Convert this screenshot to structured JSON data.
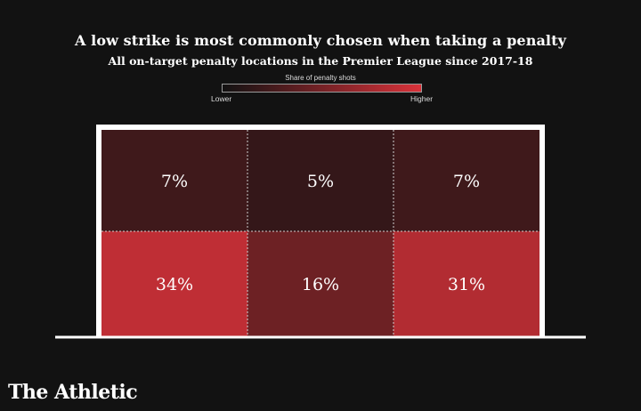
{
  "chart_data": {
    "type": "heatmap",
    "title": "A low strike is most commonly chosen when taking a penalty",
    "subtitle": "All on-target penalty locations in the Premier League since 2017-18",
    "legend": {
      "title": "Share of penalty shots",
      "low_label": "Lower",
      "high_label": "Higher",
      "low_color": "#121212",
      "high_color": "#d9323a"
    },
    "rows": [
      "top",
      "bottom"
    ],
    "columns": [
      "left",
      "center",
      "right"
    ],
    "cells": [
      {
        "row": 0,
        "col": 0,
        "value": 7,
        "label": "7%"
      },
      {
        "row": 0,
        "col": 1,
        "value": 5,
        "label": "5%"
      },
      {
        "row": 0,
        "col": 2,
        "value": 7,
        "label": "7%"
      },
      {
        "row": 1,
        "col": 0,
        "value": 34,
        "label": "34%"
      },
      {
        "row": 1,
        "col": 1,
        "value": 16,
        "label": "16%"
      },
      {
        "row": 1,
        "col": 2,
        "value": 31,
        "label": "31%"
      }
    ],
    "value_range": [
      0,
      40
    ]
  },
  "colors": {
    "background": "#121212",
    "goal_frame": "#ffffff",
    "cell_divider": "#cfcfcf"
  },
  "brand": "The Athletic"
}
